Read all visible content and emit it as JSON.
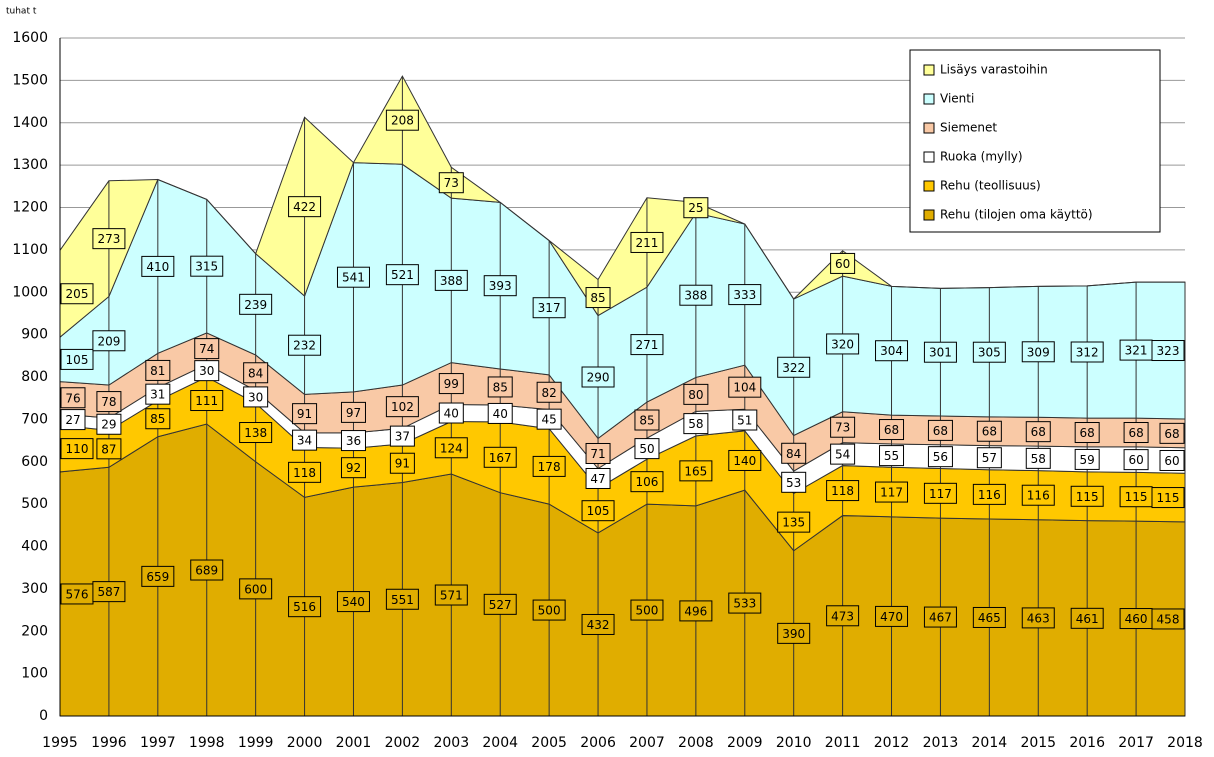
{
  "chart_data": {
    "type": "stacked_area",
    "unit_label": "tuhat t",
    "categories": [
      1995,
      1996,
      1997,
      1998,
      1999,
      2000,
      2001,
      2002,
      2003,
      2004,
      2005,
      2006,
      2007,
      2008,
      2009,
      2010,
      2011,
      2012,
      2013,
      2014,
      2015,
      2016,
      2017,
      2018
    ],
    "series": [
      {
        "name": "Rehu (tilojen oma käyttö)",
        "color": "#e0ad00",
        "values": [
          576,
          587,
          659,
          689,
          600,
          516,
          540,
          551,
          571,
          527,
          500,
          432,
          500,
          496,
          533,
          390,
          473,
          470,
          467,
          465,
          463,
          461,
          460,
          458
        ]
      },
      {
        "name": "Rehu (teollisuus)",
        "color": "#ffc800",
        "values": [
          110,
          87,
          85,
          111,
          138,
          118,
          92,
          91,
          124,
          167,
          178,
          105,
          106,
          165,
          140,
          135,
          118,
          117,
          117,
          116,
          116,
          115,
          115,
          115
        ]
      },
      {
        "name": "Ruoka (mylly)",
        "color": "#ffffff",
        "values": [
          27,
          29,
          31,
          30,
          30,
          34,
          36,
          37,
          40,
          40,
          45,
          47,
          50,
          58,
          51,
          53,
          54,
          55,
          56,
          57,
          58,
          59,
          60,
          60
        ]
      },
      {
        "name": "Siemenet",
        "color": "#f9c9a6",
        "values": [
          76,
          78,
          81,
          74,
          84,
          91,
          97,
          102,
          99,
          85,
          82,
          71,
          85,
          80,
          104,
          84,
          73,
          68,
          68,
          68,
          68,
          68,
          68,
          68
        ]
      },
      {
        "name": "Vienti",
        "color": "#ccffff",
        "values": [
          105,
          209,
          410,
          315,
          239,
          232,
          541,
          521,
          388,
          393,
          317,
          290,
          271,
          388,
          333,
          322,
          320,
          304,
          301,
          305,
          309,
          312,
          321,
          323
        ]
      },
      {
        "name": "Lisäys varastoihin",
        "color": "#ffff99",
        "values": [
          205,
          273,
          0,
          0,
          0,
          422,
          0,
          208,
          73,
          0,
          0,
          85,
          211,
          25,
          0,
          0,
          60,
          0,
          0,
          0,
          0,
          0,
          0,
          0
        ]
      }
    ],
    "ylim": [
      0,
      1600
    ],
    "yticks": [
      0,
      100,
      200,
      300,
      400,
      500,
      600,
      700,
      800,
      900,
      1000,
      1100,
      1200,
      1300,
      1400,
      1500,
      1600
    ],
    "grid": true,
    "legend": "top-right"
  }
}
